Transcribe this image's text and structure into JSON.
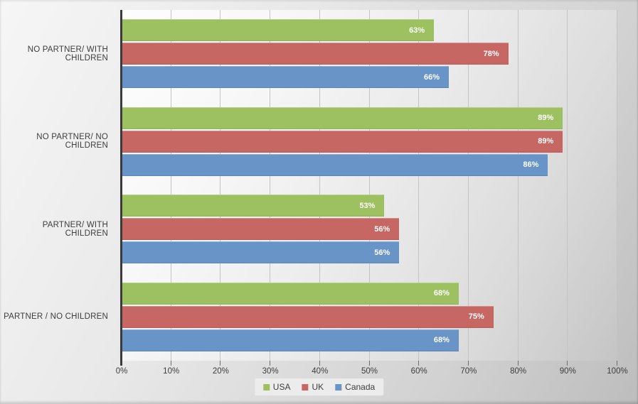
{
  "chart_data": {
    "type": "bar",
    "orientation": "horizontal",
    "title": "",
    "xlabel": "",
    "ylabel": "",
    "xlim": [
      0,
      100
    ],
    "grid": true,
    "legend_position": "bottom-center",
    "value_label_suffix": "%",
    "categories": [
      "NO PARTNER/ WITH CHILDREN",
      "NO PARTNER/ NO CHILDREN",
      "PARTNER/ WITH CHILDREN",
      "PARTNER / NO CHILDREN"
    ],
    "series": [
      {
        "name": "USA",
        "color": "#9dc161",
        "values": [
          63,
          89,
          53,
          68
        ]
      },
      {
        "name": "UK",
        "color": "#c66763",
        "values": [
          78,
          89,
          56,
          75
        ]
      },
      {
        "name": "Canada",
        "color": "#6894c7",
        "values": [
          66,
          86,
          56,
          68
        ]
      }
    ],
    "x_ticks": [
      "0%",
      "10%",
      "20%",
      "30%",
      "40%",
      "50%",
      "60%",
      "70%",
      "80%",
      "90%",
      "100%"
    ],
    "x_tick_values": [
      0,
      10,
      20,
      30,
      40,
      50,
      60,
      70,
      80,
      90,
      100
    ]
  },
  "colors": {
    "axis_line": "#3b3b3b",
    "gridline": "#c4c4c4",
    "tick": "#6f6f6f",
    "label_text": "#3d3d3d",
    "value_text": "#ffffff",
    "legend_background": "#ececec"
  }
}
